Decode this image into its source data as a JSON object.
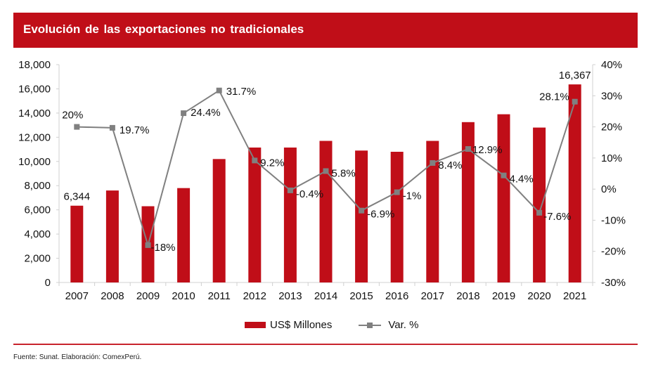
{
  "header": {
    "title": "Evolución de las exportaciones no tradicionales"
  },
  "colors": {
    "title_bg": "#c00e18",
    "bar": "#c00e18",
    "line": "#808080",
    "footer_rule": "#c8232c"
  },
  "chart_data": {
    "type": "bar",
    "title": "Evolución de las exportaciones no tradicionales",
    "xlabel": "",
    "ylabel": "",
    "categories": [
      "2007",
      "2008",
      "2009",
      "2010",
      "2011",
      "2012",
      "2013",
      "2014",
      "2015",
      "2016",
      "2017",
      "2018",
      "2019",
      "2020",
      "2021"
    ],
    "series": [
      {
        "name": "US$ Millones",
        "type": "bar",
        "axis": "left",
        "values": [
          6344,
          7600,
          6300,
          7800,
          10200,
          11150,
          11150,
          11700,
          10900,
          10800,
          11700,
          13250,
          13900,
          12800,
          16367
        ],
        "data_labels": {
          "0": "6,344",
          "14": "16,367"
        }
      },
      {
        "name": "Var. %",
        "type": "line",
        "axis": "right",
        "values": [
          20,
          19.7,
          -18,
          24.4,
          31.7,
          9.2,
          -0.4,
          5.8,
          -6.9,
          -1,
          8.4,
          12.9,
          4.4,
          -7.6,
          28.1
        ],
        "data_labels": [
          "20%",
          "19.7%",
          "-18%",
          "24.4%",
          "31.7%",
          "9.2%",
          "-0.4%",
          "5.8%",
          "-6.9%",
          "-1%",
          "8.4%",
          "12.9%",
          "4.4%",
          "-7.6%",
          "28.1%"
        ]
      }
    ],
    "y_left": {
      "range": [
        0,
        18000
      ],
      "ticks": [
        0,
        2000,
        4000,
        6000,
        8000,
        10000,
        12000,
        14000,
        16000,
        18000
      ],
      "tick_labels": [
        "0",
        "2,000",
        "4,000",
        "6,000",
        "8,000",
        "10,000",
        "12,000",
        "14,000",
        "16,000",
        "18,000"
      ]
    },
    "y_right": {
      "range": [
        -30,
        40
      ],
      "ticks": [
        -30,
        -20,
        -10,
        0,
        10,
        20,
        30,
        40
      ],
      "tick_labels": [
        "-30%",
        "-20%",
        "-10%",
        "0%",
        "10%",
        "20%",
        "30%",
        "40%"
      ]
    },
    "grid": false,
    "legend": {
      "position": "bottom",
      "entries": [
        "US$ Millones",
        "Var. %"
      ]
    }
  },
  "legend": {
    "bar_label": "US$ Millones",
    "line_label": "Var. %"
  },
  "footer": {
    "source": "Fuente: Sunat. Elaboración: ComexPerú."
  }
}
